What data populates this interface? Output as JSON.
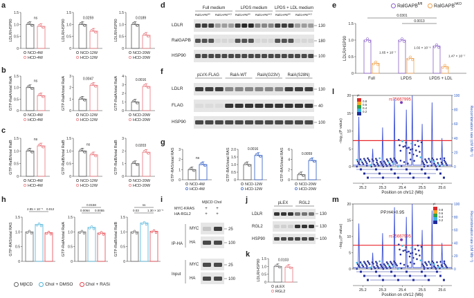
{
  "panel_letters": {
    "a": "a",
    "b": "b",
    "c": "c",
    "d": "d",
    "e": "e",
    "f": "f",
    "g": "g",
    "h": "h",
    "i": "i",
    "j": "j",
    "k": "k",
    "l": "l",
    "m": "m"
  },
  "colors": {
    "ncd": "#555555",
    "hcd": "#e8737a",
    "blue": "#2b59c3",
    "purple": "#8a5fc9",
    "orange": "#f0a04a",
    "teal": "#4cb3d9",
    "red": "#e8424a",
    "mbcd": "#666666"
  },
  "chart_data": [
    {
      "id": "a1",
      "type": "bar",
      "ylabel": "LDLR/HSP90",
      "yticks": [
        "0",
        "0.5",
        "1.0",
        "1.5"
      ],
      "ylim": [
        0,
        1.5
      ],
      "categories": [
        "NCD-4W",
        "HCD-4W"
      ],
      "values": [
        1.0,
        0.92
      ],
      "annotation": "ns",
      "legend": [
        "NCD-4W",
        "HCD-4W"
      ]
    },
    {
      "id": "a2",
      "type": "bar",
      "ylabel": "LDLR/HSP90",
      "yticks": [
        "0",
        "0.5",
        "1.0",
        "1.5"
      ],
      "ylim": [
        0,
        1.5
      ],
      "categories": [
        "NCD-12W",
        "HCD-12W"
      ],
      "values": [
        1.0,
        0.72
      ],
      "annotation": "0.0259",
      "legend": [
        "NCD-12W",
        "HCD-12W"
      ]
    },
    {
      "id": "a3",
      "type": "bar",
      "ylabel": "LDLR/HSP90",
      "yticks": [
        "0",
        "0.5",
        "1.0",
        "1.5"
      ],
      "ylim": [
        0,
        1.5
      ],
      "categories": [
        "NCD-20W",
        "HCD-20W"
      ],
      "values": [
        1.0,
        0.55
      ],
      "annotation": "0.0189",
      "legend": [
        "NCD-20W",
        "HCD-20W"
      ]
    },
    {
      "id": "b1",
      "type": "bar",
      "ylabel": "GTP-RalA/total RalA",
      "yticks": [
        "0",
        "0.5",
        "1.0",
        "1.5"
      ],
      "ylim": [
        0,
        1.5
      ],
      "categories": [
        "NCD-4W",
        "HCD-4W"
      ],
      "values": [
        1.0,
        0.65
      ],
      "annotation": "ns",
      "legend": [
        "NCD-4W",
        "HCD-4W"
      ]
    },
    {
      "id": "b2",
      "type": "bar",
      "ylabel": "GTP-RalA/total RalA",
      "yticks": [
        "0",
        "1",
        "2",
        "3"
      ],
      "ylim": [
        0,
        3
      ],
      "categories": [
        "NCD-12W",
        "HCD-12W"
      ],
      "values": [
        1.0,
        2.2
      ],
      "annotation": "0.0047",
      "legend": [
        "NCD-12W",
        "HCD-12W"
      ]
    },
    {
      "id": "b3",
      "type": "bar",
      "ylabel": "GTP-RalA/total RalA",
      "yticks": [
        "0",
        "1",
        "2",
        "3",
        "4"
      ],
      "ylim": [
        0,
        4
      ],
      "categories": [
        "NCD-20W",
        "HCD-20W"
      ],
      "values": [
        1.0,
        2.8
      ],
      "annotation": "0.0016",
      "legend": [
        "NCD-20W",
        "HCD-20W"
      ]
    },
    {
      "id": "c1",
      "type": "bar",
      "ylabel": "GTP-RalB/total RalB",
      "yticks": [
        "0",
        "0.5",
        "1.0",
        "1.5"
      ],
      "ylim": [
        0,
        1.5
      ],
      "categories": [
        "NCD-4W",
        "HCD-4W"
      ],
      "values": [
        1.0,
        1.2
      ],
      "annotation": "ns",
      "legend": [
        "NCD-4W",
        "HCD-4W"
      ]
    },
    {
      "id": "c2",
      "type": "bar",
      "ylabel": "GTP-RalB/total RalB",
      "yticks": [
        "0",
        "0.5",
        "1.0",
        "1.5"
      ],
      "ylim": [
        0,
        1.5
      ],
      "categories": [
        "NCD-12W",
        "HCD-12W"
      ],
      "values": [
        1.0,
        0.85
      ],
      "annotation": "ns",
      "legend": [
        "NCD-12W",
        "HCD-12W"
      ]
    },
    {
      "id": "c3",
      "type": "bar",
      "ylabel": "GTP-RalB/total RalB",
      "yticks": [
        "0",
        "1",
        "2",
        "3"
      ],
      "ylim": [
        0,
        3
      ],
      "categories": [
        "NCD-20W",
        "HCD-20W"
      ],
      "values": [
        1.0,
        1.9
      ],
      "annotation": "0.0203",
      "legend": [
        "NCD-20W",
        "HCD-20W"
      ]
    },
    {
      "id": "g1",
      "type": "bar",
      "ylabel": "GTP-RAS/total RAS",
      "yticks": [
        "0",
        "1",
        "2",
        "3"
      ],
      "ylim": [
        0,
        3
      ],
      "categories": [
        "NCD-4W",
        "HCD-4W"
      ],
      "values": [
        1.0,
        1.5
      ],
      "annotation": "ns",
      "legend": [
        "NCD-4W",
        "HCD-4W"
      ]
    },
    {
      "id": "g2",
      "type": "bar",
      "ylabel": "GTP-RAS/total RAS",
      "yticks": [
        "0",
        "0.5",
        "1.0",
        "1.5",
        "2.0"
      ],
      "ylim": [
        0,
        2
      ],
      "categories": [
        "NCD-12W",
        "HCD-12W"
      ],
      "values": [
        1.0,
        1.6
      ],
      "annotation": "0.0016",
      "legend": [
        "NCD-12W",
        "HCD-12W"
      ]
    },
    {
      "id": "g3",
      "type": "bar",
      "ylabel": "GTP-RAS/total RAS",
      "yticks": [
        "0",
        "2",
        "4",
        "6"
      ],
      "ylim": [
        0,
        6
      ],
      "categories": [
        "NCD-20W",
        "HCD-20W"
      ],
      "values": [
        1.0,
        3.8
      ],
      "annotation": "0.0059",
      "legend": [
        "NCD-20W",
        "HCD-20W"
      ]
    },
    {
      "id": "h1",
      "type": "bar",
      "ylabel": "GTP-RAS/total RAS",
      "yticks": [
        "0",
        "0.5",
        "1.0",
        "1.5"
      ],
      "ylim": [
        0,
        1.5
      ],
      "categories": [
        "MβCD",
        "Chol + DMSO",
        "Chol + RASi"
      ],
      "values": [
        1.0,
        1.25,
        0.97
      ],
      "annotations": [
        "2.85 × 10⁻⁵",
        "0.012"
      ]
    },
    {
      "id": "h2",
      "type": "bar",
      "ylabel": "GTP-RalA/total RalA",
      "yticks": [
        "0",
        "0.5",
        "1.0",
        "1.5"
      ],
      "ylim": [
        0,
        1.5
      ],
      "categories": [
        "MβCD",
        "Chol + DMSO",
        "Chol + RASi"
      ],
      "values": [
        1.0,
        1.15,
        0.96
      ],
      "annotations": [
        "0.0158",
        "0.0064",
        "0.0055"
      ]
    },
    {
      "id": "h3",
      "type": "bar",
      "ylabel": "GTP-RalB/total RalB",
      "yticks": [
        "0",
        "0.5",
        "1.0",
        "1.5"
      ],
      "ylim": [
        0,
        1.5
      ],
      "categories": [
        "MβCD",
        "Chol + DMSO",
        "Chol + RASi"
      ],
      "values": [
        1.0,
        1.3,
        1.02
      ],
      "annotations": [
        "ns",
        "0.03",
        "1.30 × 10⁻⁵"
      ]
    },
    {
      "id": "e",
      "type": "bar",
      "ylabel": "LDLR/HSP90",
      "yticks": [
        "0",
        "0.5",
        "1.0",
        "1.5"
      ],
      "ylim": [
        0,
        1.5
      ],
      "categories": [
        "Full",
        "LPDS",
        "LPDS + LDL"
      ],
      "series": [
        {
          "name": "RalGAPB",
          "values": [
            1.0,
            1.0,
            0.82
          ]
        },
        {
          "name": "RalGAPB",
          "values": [
            0.3,
            0.45,
            0.2
          ]
        }
      ],
      "annotations": [
        "1.65 × 10⁻⁷",
        "1.02 × 10⁻⁶",
        "1.47 × 10⁻⁷",
        "0.0301",
        "0.0013"
      ]
    },
    {
      "id": "k",
      "type": "bar",
      "ylabel": "LDLR/HSP90",
      "yticks": [
        "0",
        "0.5",
        "1.0",
        "1.5"
      ],
      "ylim": [
        0,
        1.5
      ],
      "categories": [
        "pLEX",
        "RGL2"
      ],
      "values": [
        1.0,
        0.95
      ],
      "annotation": "0.0103",
      "legend": [
        "pLEX",
        "RGL2"
      ]
    },
    {
      "id": "l",
      "type": "scatter",
      "xlabel": "Position on chr12 (Mb)",
      "ylabel": "−log₁₀(P value)",
      "y2label": "Recombination rate (cM Mb⁻¹)",
      "xticks": [
        "25.2",
        "25.3",
        "25.4",
        "25.5",
        "25.6"
      ],
      "yticks": [
        "0",
        "5",
        "10",
        "15",
        "20"
      ],
      "y2ticks": [
        "0",
        "20",
        "40",
        "60",
        "80",
        "100"
      ],
      "lead_snp": "rs75667995",
      "legend": [
        "0.8",
        "0.6",
        "0.4",
        "0.2"
      ],
      "legend_title": "r²"
    },
    {
      "id": "m",
      "type": "scatter",
      "xlabel": "Position on chr12 (Mb)",
      "ylabel": "−log₁₀(P value)",
      "y2label": "Recombination rate (cM Mb⁻¹)",
      "xticks": [
        "25.2",
        "25.3",
        "25.4",
        "25.5",
        "25.6"
      ],
      "yticks": [
        "0",
        "5",
        "10",
        "15",
        "20"
      ],
      "y2ticks": [
        "0",
        "20",
        "40",
        "60",
        "80",
        "100"
      ],
      "lead_snp": "rs75667995",
      "annotation": "PP.H4>0.95",
      "legend": [
        "0.8",
        "0.6",
        "0.4",
        "0.2"
      ],
      "legend_title": "r²"
    }
  ],
  "blot_d": {
    "headers": [
      "Full medium",
      "LPDS medium",
      "LPDS + LDL medium"
    ],
    "groups": [
      "RalGAPB",
      "RalGAPB",
      "RalGAPB",
      "RalGAPB",
      "RalGAPB",
      "RalGAPB"
    ],
    "sups": [
      "fl/fl",
      "hKO",
      "fl/fl",
      "hKO",
      "fl/fl",
      "hKO"
    ],
    "rows": [
      "LDLR",
      "RalGAPB",
      "HSP90"
    ],
    "mw": [
      "130",
      "180",
      "100"
    ]
  },
  "blot_f": {
    "headers": [
      "pLVX-FLAG",
      "RalA-WT",
      "RalA(G23V)",
      "RalA(S28N)"
    ],
    "rows": [
      "LDLR",
      "FLAG",
      "HSP90"
    ],
    "mw": [
      "130",
      "40",
      "100"
    ]
  },
  "blot_i": {
    "header": "MβCD  Chol",
    "cond_rows": [
      {
        "label": "MYC-KRAS",
        "vals": [
          "+",
          "+"
        ]
      },
      {
        "label": "HA-RGL2",
        "vals": [
          "+",
          "+"
        ]
      }
    ],
    "sections": [
      "IP-HA",
      "Input"
    ],
    "rows": [
      "MYC",
      "HA",
      "MYC",
      "HA"
    ],
    "mw": [
      "25",
      "100",
      "25",
      "100"
    ]
  },
  "blot_j": {
    "headers": [
      "pLEX",
      "RGL2"
    ],
    "rows": [
      "LDLR",
      "RGL2",
      "HSP90"
    ],
    "mw": [
      "130",
      "130",
      "100"
    ]
  },
  "legend_e": {
    "a": "RalGAPB",
    "a_sup": "fl/fl",
    "b": "RalGAPB",
    "b_sup": "hKO"
  },
  "legend_h": [
    "MβCD",
    "Chol + DMSO",
    "Chol + RASi"
  ]
}
